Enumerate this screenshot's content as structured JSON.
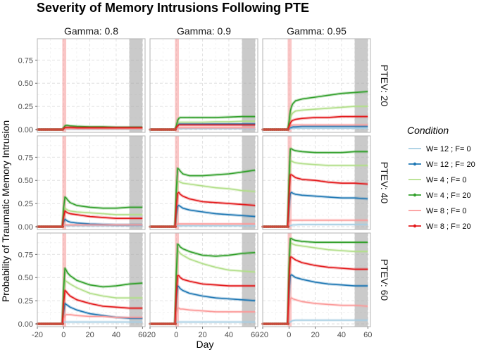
{
  "chart_data": {
    "type": "line",
    "title": "Severity of Memory Intrusions Following PTE",
    "xlabel": "Day",
    "ylabel": "Probability of Traumatic Memory Intrusion",
    "xlim": [
      -20,
      62
    ],
    "ylim": [
      -0.03,
      0.98
    ],
    "x_ticks": [
      -20,
      0,
      20,
      40,
      60
    ],
    "y_ticks": [
      0.0,
      0.25,
      0.5,
      0.75
    ],
    "x_tick_labels": [
      "-20",
      "0",
      "20",
      "40",
      "60"
    ],
    "y_tick_labels": [
      "0.00",
      "0.25",
      "0.50",
      "0.75"
    ],
    "grid": true,
    "legend_position": "right",
    "legend_title": "Condition",
    "pte_band": [
      -1,
      2
    ],
    "end_band": [
      50,
      60
    ],
    "x": [
      -20,
      -15,
      -10,
      -5,
      -1,
      0,
      1,
      2,
      3,
      5,
      10,
      20,
      30,
      40,
      50,
      60
    ],
    "series": [
      {
        "name": "W= 12 ; F= 0",
        "color": "#a6cee3"
      },
      {
        "name": "W= 12 ; F= 20",
        "color": "#1f78b4"
      },
      {
        "name": "W= 4 ; F= 0",
        "color": "#b2df8a"
      },
      {
        "name": "W= 4 ; F= 20",
        "color": "#33a02c"
      },
      {
        "name": "W= 8 ; F= 0",
        "color": "#fb9a99"
      },
      {
        "name": "W= 8 ; F= 20",
        "color": "#e31a1c"
      }
    ],
    "col_labels": [
      "Gamma: 0.8",
      "Gamma: 0.9",
      "Gamma: 0.95"
    ],
    "row_labels": [
      "PTEV: 20",
      "PTEV: 40",
      "PTEV: 60"
    ],
    "panels": [
      {
        "row": 0,
        "col": 0,
        "values": [
          [
            0,
            0,
            0,
            0,
            0,
            0.005,
            0.005,
            0.005,
            0.005,
            0.005,
            0.005,
            0.005,
            0.005,
            0.005,
            0.005,
            0.005
          ],
          [
            0,
            0,
            0,
            0,
            0,
            0.01,
            0.02,
            0.02,
            0.02,
            0.02,
            0.02,
            0.02,
            0.02,
            0.02,
            0.02,
            0.02
          ],
          [
            0,
            0,
            0,
            0,
            0,
            0.01,
            0.02,
            0.02,
            0.02,
            0.02,
            0.02,
            0.02,
            0.015,
            0.015,
            0.015,
            0.015
          ],
          [
            0,
            0,
            0,
            0,
            0,
            0.02,
            0.04,
            0.045,
            0.045,
            0.04,
            0.035,
            0.03,
            0.03,
            0.025,
            0.025,
            0.025
          ],
          [
            0,
            0,
            0,
            0,
            0,
            0.005,
            0.01,
            0.01,
            0.01,
            0.01,
            0.01,
            0.01,
            0.01,
            0.01,
            0.01,
            0.01
          ],
          [
            0,
            0,
            0,
            0,
            0,
            0.01,
            0.02,
            0.025,
            0.025,
            0.025,
            0.02,
            0.02,
            0.02,
            0.02,
            0.02,
            0.02
          ]
        ]
      },
      {
        "row": 0,
        "col": 1,
        "values": [
          [
            0,
            0,
            0,
            0,
            0,
            0.005,
            0.01,
            0.01,
            0.01,
            0.01,
            0.01,
            0.01,
            0.01,
            0.01,
            0.01,
            0.01
          ],
          [
            0,
            0,
            0,
            0,
            0,
            0.02,
            0.05,
            0.06,
            0.06,
            0.06,
            0.06,
            0.06,
            0.06,
            0.06,
            0.06,
            0.06
          ],
          [
            0,
            0,
            0,
            0,
            0,
            0.03,
            0.07,
            0.08,
            0.08,
            0.08,
            0.08,
            0.08,
            0.085,
            0.085,
            0.09,
            0.09
          ],
          [
            0,
            0,
            0,
            0,
            0,
            0.04,
            0.1,
            0.12,
            0.13,
            0.13,
            0.13,
            0.13,
            0.13,
            0.135,
            0.14,
            0.14
          ],
          [
            0,
            0,
            0,
            0,
            0,
            0.01,
            0.02,
            0.02,
            0.02,
            0.02,
            0.02,
            0.02,
            0.02,
            0.02,
            0.02,
            0.02
          ],
          [
            0,
            0,
            0,
            0,
            0,
            0.02,
            0.04,
            0.05,
            0.05,
            0.05,
            0.05,
            0.05,
            0.05,
            0.05,
            0.05,
            0.05
          ]
        ]
      },
      {
        "row": 0,
        "col": 2,
        "values": [
          [
            0,
            0,
            0,
            0,
            0,
            0.005,
            0.01,
            0.015,
            0.015,
            0.015,
            0.015,
            0.015,
            0.015,
            0.015,
            0.015,
            0.015
          ],
          [
            0,
            0,
            0,
            0,
            0,
            0.01,
            0.02,
            0.025,
            0.03,
            0.03,
            0.035,
            0.035,
            0.035,
            0.035,
            0.035,
            0.035
          ],
          [
            0,
            0,
            0,
            0,
            0,
            0.05,
            0.12,
            0.16,
            0.18,
            0.2,
            0.21,
            0.22,
            0.23,
            0.24,
            0.25,
            0.25
          ],
          [
            0,
            0,
            0,
            0,
            0,
            0.08,
            0.2,
            0.25,
            0.28,
            0.31,
            0.33,
            0.35,
            0.37,
            0.39,
            0.4,
            0.41
          ],
          [
            0,
            0,
            0,
            0,
            0,
            0.02,
            0.04,
            0.045,
            0.05,
            0.05,
            0.05,
            0.05,
            0.05,
            0.05,
            0.05,
            0.05
          ],
          [
            0,
            0,
            0,
            0,
            0,
            0.03,
            0.07,
            0.09,
            0.1,
            0.11,
            0.12,
            0.13,
            0.13,
            0.14,
            0.14,
            0.14
          ]
        ]
      },
      {
        "row": 1,
        "col": 0,
        "values": [
          [
            0,
            0,
            0,
            0,
            0,
            0.01,
            0.01,
            0.01,
            0.01,
            0.01,
            0.01,
            0.01,
            0.01,
            0.01,
            0.01,
            0.01
          ],
          [
            0,
            0,
            0,
            0,
            0,
            0.05,
            0.08,
            0.07,
            0.06,
            0.05,
            0.04,
            0.03,
            0.025,
            0.02,
            0.02,
            0.02
          ],
          [
            0,
            0,
            0,
            0,
            0,
            0.12,
            0.2,
            0.19,
            0.18,
            0.17,
            0.16,
            0.15,
            0.14,
            0.13,
            0.13,
            0.13
          ],
          [
            0,
            0,
            0,
            0,
            0,
            0.2,
            0.32,
            0.31,
            0.29,
            0.26,
            0.23,
            0.21,
            0.2,
            0.2,
            0.21,
            0.21
          ],
          [
            0,
            0,
            0,
            0,
            0,
            0.01,
            0.02,
            0.02,
            0.02,
            0.02,
            0.02,
            0.02,
            0.02,
            0.02,
            0.02,
            0.02
          ],
          [
            0,
            0,
            0,
            0,
            0,
            0.1,
            0.17,
            0.16,
            0.15,
            0.14,
            0.13,
            0.11,
            0.1,
            0.09,
            0.09,
            0.09
          ]
        ]
      },
      {
        "row": 1,
        "col": 1,
        "values": [
          [
            0,
            0,
            0,
            0,
            0,
            0.005,
            0.01,
            0.01,
            0.01,
            0.01,
            0.01,
            0.01,
            0.01,
            0.01,
            0.01,
            0.01
          ],
          [
            0,
            0,
            0,
            0,
            0,
            0.12,
            0.22,
            0.23,
            0.22,
            0.2,
            0.18,
            0.16,
            0.14,
            0.13,
            0.12,
            0.11
          ],
          [
            0,
            0,
            0,
            0,
            0,
            0.28,
            0.48,
            0.49,
            0.48,
            0.47,
            0.46,
            0.44,
            0.42,
            0.41,
            0.39,
            0.38
          ],
          [
            0,
            0,
            0,
            0,
            0,
            0.4,
            0.63,
            0.62,
            0.6,
            0.57,
            0.55,
            0.55,
            0.56,
            0.57,
            0.59,
            0.61
          ],
          [
            0,
            0,
            0,
            0,
            0,
            0.02,
            0.03,
            0.03,
            0.03,
            0.03,
            0.03,
            0.03,
            0.03,
            0.03,
            0.03,
            0.03
          ],
          [
            0,
            0,
            0,
            0,
            0,
            0.2,
            0.36,
            0.37,
            0.35,
            0.33,
            0.3,
            0.27,
            0.26,
            0.25,
            0.24,
            0.23
          ]
        ]
      },
      {
        "row": 1,
        "col": 2,
        "values": [
          [
            0,
            0,
            0,
            0,
            0,
            0.005,
            0.01,
            0.015,
            0.02,
            0.02,
            0.025,
            0.025,
            0.025,
            0.025,
            0.025,
            0.025
          ],
          [
            0,
            0,
            0,
            0,
            0,
            0.2,
            0.36,
            0.37,
            0.36,
            0.35,
            0.34,
            0.33,
            0.32,
            0.31,
            0.31,
            0.3
          ],
          [
            0,
            0,
            0,
            0,
            0,
            0.4,
            0.7,
            0.71,
            0.7,
            0.69,
            0.68,
            0.67,
            0.66,
            0.66,
            0.66,
            0.66
          ],
          [
            0,
            0,
            0,
            0,
            0,
            0.5,
            0.84,
            0.84,
            0.83,
            0.82,
            0.81,
            0.8,
            0.8,
            0.8,
            0.81,
            0.81
          ],
          [
            0,
            0,
            0,
            0,
            0,
            0.04,
            0.07,
            0.07,
            0.07,
            0.07,
            0.07,
            0.07,
            0.07,
            0.07,
            0.07,
            0.07
          ],
          [
            0,
            0,
            0,
            0,
            0,
            0.32,
            0.56,
            0.56,
            0.55,
            0.53,
            0.51,
            0.5,
            0.48,
            0.47,
            0.47,
            0.46
          ]
        ]
      },
      {
        "row": 2,
        "col": 0,
        "values": [
          [
            0,
            0,
            0,
            0,
            0,
            0.015,
            0.02,
            0.02,
            0.02,
            0.02,
            0.02,
            0.02,
            0.02,
            0.02,
            0.02,
            0.02
          ],
          [
            0,
            0,
            0,
            0,
            0,
            0.12,
            0.22,
            0.21,
            0.2,
            0.18,
            0.15,
            0.11,
            0.09,
            0.07,
            0.06,
            0.06
          ],
          [
            0,
            0,
            0,
            0,
            0,
            0.3,
            0.47,
            0.46,
            0.45,
            0.43,
            0.39,
            0.33,
            0.3,
            0.28,
            0.28,
            0.28
          ],
          [
            0,
            0,
            0,
            0,
            0,
            0.38,
            0.6,
            0.58,
            0.55,
            0.52,
            0.47,
            0.42,
            0.4,
            0.41,
            0.43,
            0.44
          ],
          [
            0,
            0,
            0,
            0,
            0,
            0.05,
            0.09,
            0.1,
            0.1,
            0.1,
            0.09,
            0.08,
            0.08,
            0.07,
            0.07,
            0.07
          ],
          [
            0,
            0,
            0,
            0,
            0,
            0.22,
            0.36,
            0.35,
            0.33,
            0.3,
            0.26,
            0.22,
            0.19,
            0.18,
            0.17,
            0.17
          ]
        ]
      },
      {
        "row": 2,
        "col": 1,
        "values": [
          [
            0,
            0,
            0,
            0,
            0,
            0.01,
            0.02,
            0.02,
            0.02,
            0.02,
            0.02,
            0.02,
            0.02,
            0.02,
            0.02,
            0.02
          ],
          [
            0,
            0,
            0,
            0,
            0,
            0.25,
            0.41,
            0.4,
            0.38,
            0.36,
            0.33,
            0.3,
            0.28,
            0.27,
            0.26,
            0.25
          ],
          [
            0,
            0,
            0,
            0,
            0,
            0.5,
            0.79,
            0.78,
            0.76,
            0.74,
            0.7,
            0.65,
            0.61,
            0.58,
            0.57,
            0.56
          ],
          [
            0,
            0,
            0,
            0,
            0,
            0.55,
            0.86,
            0.85,
            0.83,
            0.81,
            0.78,
            0.74,
            0.73,
            0.74,
            0.76,
            0.77
          ],
          [
            0,
            0,
            0,
            0,
            0,
            0.1,
            0.17,
            0.17,
            0.16,
            0.16,
            0.15,
            0.14,
            0.13,
            0.13,
            0.13,
            0.13
          ],
          [
            0,
            0,
            0,
            0,
            0,
            0.32,
            0.52,
            0.52,
            0.5,
            0.48,
            0.46,
            0.43,
            0.42,
            0.41,
            0.41,
            0.41
          ]
        ]
      },
      {
        "row": 2,
        "col": 2,
        "values": [
          [
            0,
            0,
            0,
            0,
            0,
            0.01,
            0.02,
            0.03,
            0.035,
            0.04,
            0.04,
            0.04,
            0.04,
            0.04,
            0.04,
            0.04
          ],
          [
            0,
            0,
            0,
            0,
            0,
            0.32,
            0.52,
            0.53,
            0.52,
            0.5,
            0.48,
            0.45,
            0.43,
            0.42,
            0.41,
            0.41
          ],
          [
            0,
            0,
            0,
            0,
            0,
            0.58,
            0.88,
            0.87,
            0.86,
            0.85,
            0.84,
            0.82,
            0.8,
            0.79,
            0.78,
            0.78
          ],
          [
            0,
            0,
            0,
            0,
            0,
            0.6,
            0.92,
            0.92,
            0.91,
            0.9,
            0.89,
            0.88,
            0.88,
            0.88,
            0.88,
            0.88
          ],
          [
            0,
            0,
            0,
            0,
            0,
            0.15,
            0.27,
            0.28,
            0.27,
            0.26,
            0.24,
            0.22,
            0.21,
            0.2,
            0.2,
            0.19
          ],
          [
            0,
            0,
            0,
            0,
            0,
            0.45,
            0.72,
            0.72,
            0.71,
            0.69,
            0.66,
            0.63,
            0.61,
            0.6,
            0.59,
            0.59
          ]
        ]
      }
    ]
  }
}
